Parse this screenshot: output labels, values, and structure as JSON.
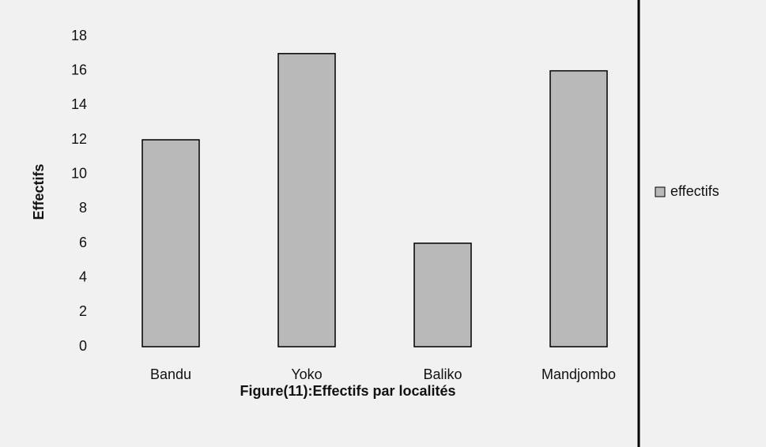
{
  "chart_data": {
    "type": "bar",
    "title": "Figure(11):Effectifs par localités",
    "y_label": "Effectifs",
    "categories": [
      "Bandu",
      "Yoko",
      "Baliko",
      "Mandjombo"
    ],
    "series": [
      {
        "name": "effectifs",
        "color": "#b9b9b9",
        "values": [
          12,
          17,
          6,
          16
        ]
      }
    ],
    "ylim": [
      0,
      18
    ],
    "yticks": [
      0,
      2,
      4,
      6,
      8,
      10,
      12,
      14,
      16,
      18
    ],
    "grid": false,
    "legend": "right"
  }
}
